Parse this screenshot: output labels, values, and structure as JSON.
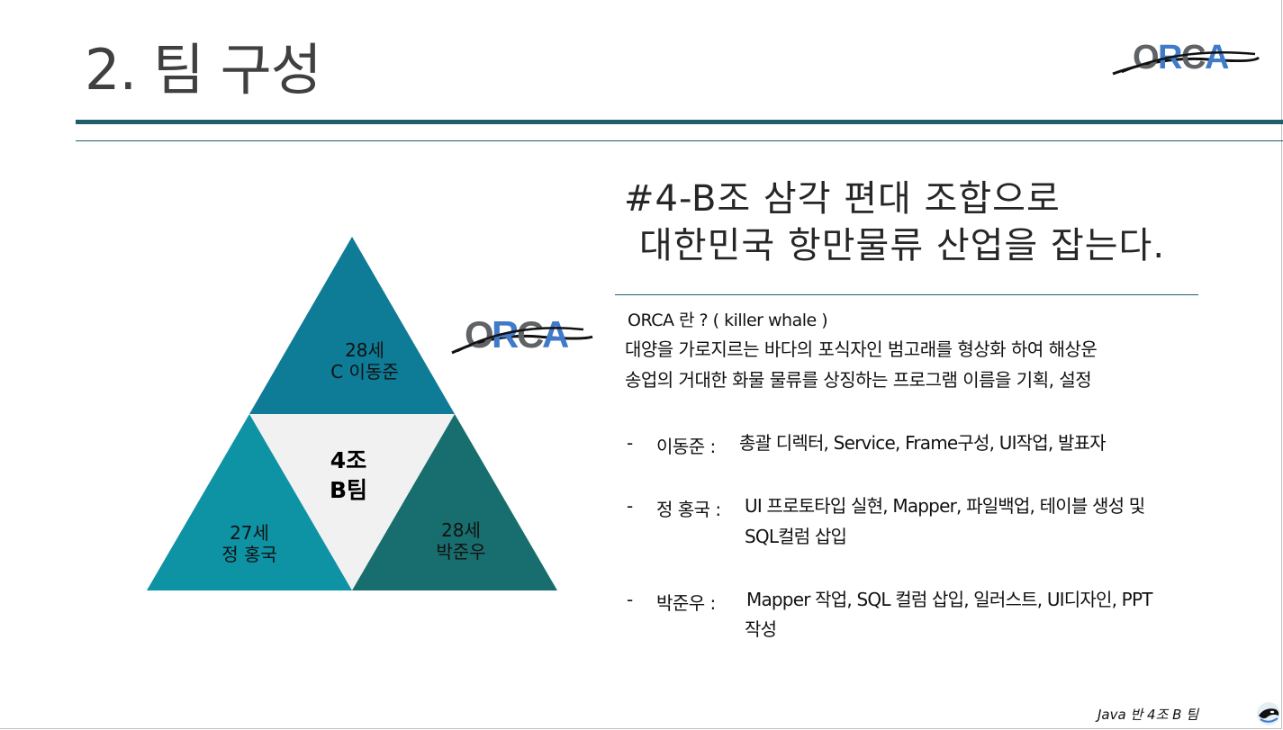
{
  "slide": {
    "title": "2. 팀 구성",
    "logo_text": "ORCA",
    "colors": {
      "rule": "#1f5f6b",
      "tri_top": "#0e7b97",
      "tri_left": "#0e93a4",
      "tri_right": "#186e6e",
      "tri_center": "#f1f1f1",
      "logo_gray": "#5f6366",
      "logo_blue": "#3f7bc9",
      "logo_dark_blue": "#2f5fb0"
    }
  },
  "triangle": {
    "top": {
      "age": "28세",
      "name": "C 이동준"
    },
    "left": {
      "age": "27세",
      "name": "정 홍국"
    },
    "right": {
      "age": "28세",
      "name": "박준우"
    },
    "center": {
      "line1": "4조",
      "line2": "B팀"
    }
  },
  "headline": {
    "line1": "#4-B조 삼각 편대 조합으로",
    "line2": "대한민국 항만물류 산업을 잡는다."
  },
  "description": {
    "heading": "ORCA 란 ? ( killer whale )",
    "line1": "대양을 가로지르는 바다의 포식자인 범고래를 형상화 하여 해상운",
    "line2": "송업의 거대한 화물 물류를  상징하는 프로그램 이름을 기획, 설정"
  },
  "members": [
    {
      "dash": "-",
      "name": "이동준  :",
      "role1": "총괄 디렉터, Service,  Frame구성,  UI작업,  발표자",
      "role2": ""
    },
    {
      "dash": "-",
      "name": "정 홍국  :",
      "role1": "UI 프로토타입 실현, Mapper, 파일백업, 테이블 생성 및",
      "role2": "SQL컬럼 삽입"
    },
    {
      "dash": "-",
      "name": "박준우 :",
      "role1": "Mapper 작업, SQL 컬럼 삽입, 일러스트, UI디자인, PPT",
      "role2": "작성"
    }
  ],
  "footer": {
    "text": "Java 반 4조 B 팀",
    "icon": "orca-whale-icon"
  }
}
